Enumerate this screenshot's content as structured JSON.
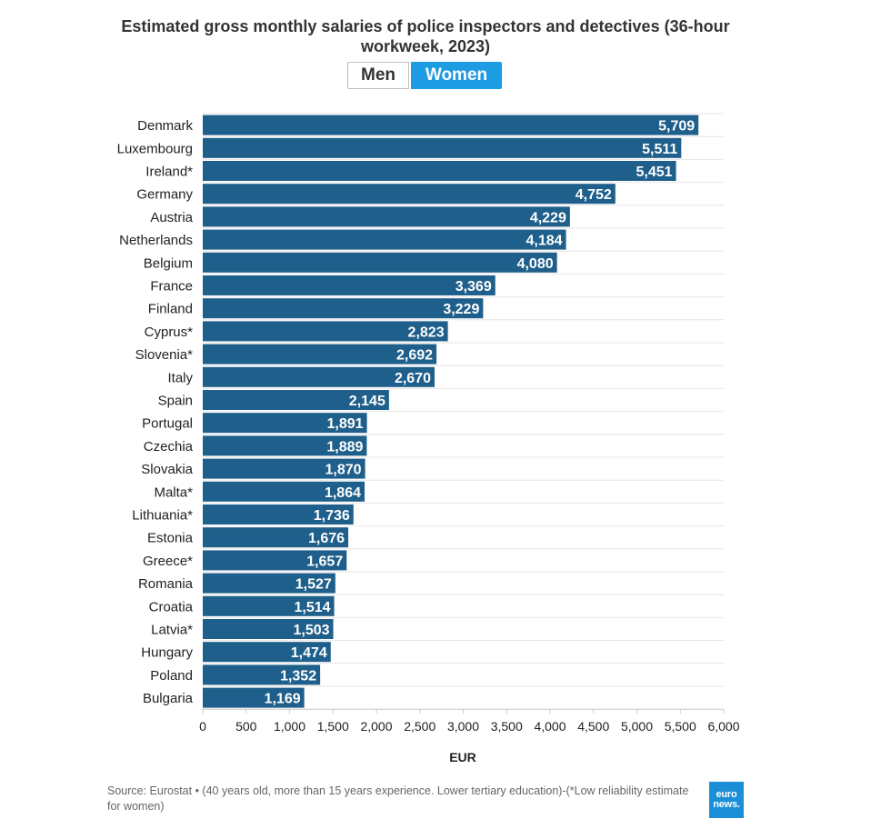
{
  "header": {
    "title": "Estimated gross monthly salaries of police inspectors and detectives (36-hour workweek, 2023)"
  },
  "toggle": {
    "options": [
      "Men",
      "Women"
    ],
    "selected": "Women",
    "active_color": "#1d9be3"
  },
  "chart_data": {
    "type": "bar",
    "orientation": "horizontal",
    "categories": [
      "Denmark",
      "Luxembourg",
      "Ireland*",
      "Germany",
      "Austria",
      "Netherlands",
      "Belgium",
      "France",
      "Finland",
      "Cyprus*",
      "Slovenia*",
      "Italy",
      "Spain",
      "Portugal",
      "Czechia",
      "Slovakia",
      "Malta*",
      "Lithuania*",
      "Estonia",
      "Greece*",
      "Romania",
      "Croatia",
      "Latvia*",
      "Hungary",
      "Poland",
      "Bulgaria"
    ],
    "values": [
      5709,
      5511,
      5451,
      4752,
      4229,
      4184,
      4080,
      3369,
      3229,
      2823,
      2692,
      2670,
      2145,
      1891,
      1889,
      1870,
      1864,
      1736,
      1676,
      1657,
      1527,
      1514,
      1503,
      1474,
      1352,
      1169
    ],
    "value_labels": [
      "5,709",
      "5,511",
      "5,451",
      "4,752",
      "4,229",
      "4,184",
      "4,080",
      "3,369",
      "3,229",
      "2,823",
      "2,692",
      "2,670",
      "2,145",
      "1,891",
      "1,889",
      "1,870",
      "1,864",
      "1,736",
      "1,676",
      "1,657",
      "1,527",
      "1,514",
      "1,503",
      "1,474",
      "1,352",
      "1,169"
    ],
    "xlabel": "EUR",
    "ylabel": "",
    "xlim": [
      0,
      6000
    ],
    "ticks": [
      0,
      500,
      1000,
      1500,
      2000,
      2500,
      3000,
      3500,
      4000,
      4500,
      5000,
      5500,
      6000
    ],
    "tick_labels": [
      "0",
      "500",
      "1,000",
      "1,500",
      "2,000",
      "2,500",
      "3,000",
      "3,500",
      "4,000",
      "4,500",
      "5,000",
      "5,500",
      "6,000"
    ],
    "grid": true,
    "bar_color": "#1f5f8b"
  },
  "footer": {
    "source": "Source: Eurostat • (40 years old, more than 15 years experience. Lower tertiary education)-(*Low reliability estimate for women)",
    "logo_line1": "euro",
    "logo_line2": "news."
  }
}
